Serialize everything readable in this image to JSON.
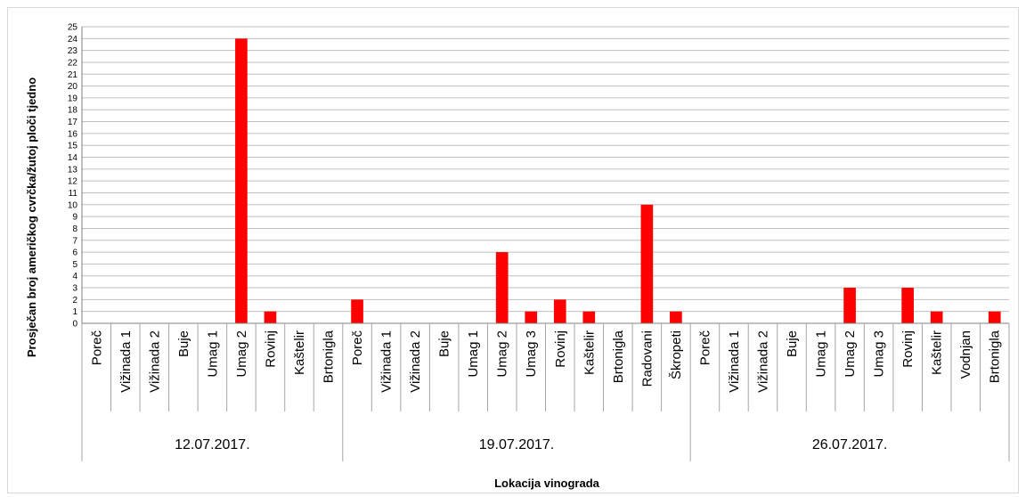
{
  "chart_data": {
    "type": "bar",
    "title": "",
    "xlabel": "Lokacija vinograda",
    "ylabel": "Prosječan broj  američkog cvrčka/žutoj ploči tjedno",
    "ylim": [
      0,
      25
    ],
    "ytick_step": 1,
    "grid": true,
    "legend": "none",
    "bar_color": "#ff0000",
    "groups": [
      {
        "label": "12.07.2017.",
        "categories": [
          "Poreč",
          "Vižinada 1",
          "Vižinada 2",
          "Buje",
          "Umag 1",
          "Umag 2",
          "Rovinj",
          "Kaštelir",
          "Brtonigla"
        ],
        "values": [
          0,
          0,
          0,
          0,
          0,
          24,
          1,
          0,
          0
        ]
      },
      {
        "label": "19.07.2017.",
        "categories": [
          "Poreč",
          "Vižinada 1",
          "Vižinada 2",
          "Buje",
          "Umag 1",
          "Umag 2",
          "Umag 3",
          "Rovinj",
          "Kaštelir",
          "Brtonigla",
          "Radovani",
          "Škropeti"
        ],
        "values": [
          2,
          0,
          0,
          0,
          0,
          6,
          1,
          2,
          1,
          0,
          10,
          1
        ]
      },
      {
        "label": "26.07.2017.",
        "categories": [
          "Poreč",
          "Vižinada 1",
          "Vižinada 2",
          "Buje",
          "Umag 1",
          "Umag 2",
          "Umag 3",
          "Rovinj",
          "Kaštelir",
          "Vodnjan",
          "Brtonigla"
        ],
        "values": [
          0,
          0,
          0,
          0,
          0,
          3,
          0,
          3,
          1,
          0,
          1
        ]
      }
    ]
  }
}
